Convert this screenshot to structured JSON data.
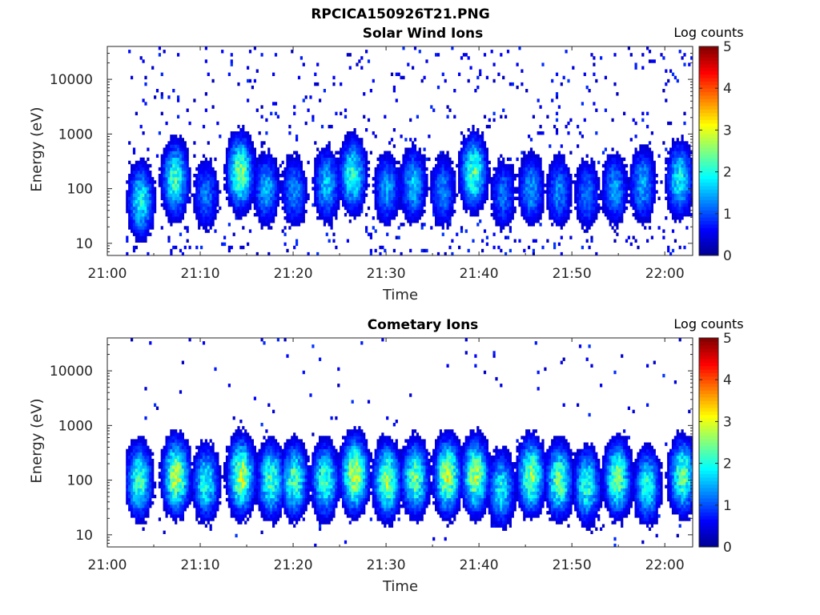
{
  "figure_title": "RPCICA150926T21.PNG",
  "colormap": [
    "#00008f",
    "#0000ff",
    "#0080ff",
    "#00ffff",
    "#80ff80",
    "#ffff00",
    "#ff8000",
    "#ff0000",
    "#800000"
  ],
  "chart_data": [
    {
      "type": "heatmap",
      "title": "Solar Wind Ions",
      "xlabel": "Time",
      "ylabel": "Energy (eV)",
      "x_ticks": [
        "21:00",
        "21:10",
        "21:20",
        "21:30",
        "21:40",
        "21:50",
        "22:00"
      ],
      "xlim": [
        "21:00",
        "22:03"
      ],
      "y_scale": "log",
      "y_ticks": [
        10,
        100,
        1000,
        10000
      ],
      "ylim": [
        6,
        40000
      ],
      "colorbar_label": "Log counts",
      "colorbar_ticks": [
        0,
        1,
        2,
        3,
        4,
        5
      ],
      "clim": [
        0,
        5
      ],
      "data_start": "21:02",
      "data_end": "22:03",
      "bursts": [
        {
          "time": "21:03.5",
          "peak_eV": 60,
          "max_log_counts": 1.9
        },
        {
          "time": "21:07.2",
          "peak_eV": 150,
          "max_log_counts": 2.2
        },
        {
          "time": "21:10.5",
          "peak_eV": 80,
          "max_log_counts": 1.2
        },
        {
          "time": "21:14.2",
          "peak_eV": 200,
          "max_log_counts": 2.5
        },
        {
          "time": "21:17",
          "peak_eV": 100,
          "max_log_counts": 1.5
        },
        {
          "time": "21:20",
          "peak_eV": 90,
          "max_log_counts": 1.3
        },
        {
          "time": "21:23.5",
          "peak_eV": 120,
          "max_log_counts": 1.6
        },
        {
          "time": "21:26.3",
          "peak_eV": 180,
          "max_log_counts": 2.1
        },
        {
          "time": "21:30",
          "peak_eV": 100,
          "max_log_counts": 1.4
        },
        {
          "time": "21:32.8",
          "peak_eV": 120,
          "max_log_counts": 1.6
        },
        {
          "time": "21:36",
          "peak_eV": 90,
          "max_log_counts": 1.3
        },
        {
          "time": "21:39.3",
          "peak_eV": 200,
          "max_log_counts": 2.3
        },
        {
          "time": "21:42.5",
          "peak_eV": 80,
          "max_log_counts": 1.2
        },
        {
          "time": "21:45.5",
          "peak_eV": 100,
          "max_log_counts": 1.4
        },
        {
          "time": "21:48.5",
          "peak_eV": 90,
          "max_log_counts": 1.3
        },
        {
          "time": "21:51.5",
          "peak_eV": 80,
          "max_log_counts": 1.2
        },
        {
          "time": "21:54.5",
          "peak_eV": 100,
          "max_log_counts": 1.4
        },
        {
          "time": "21:57.5",
          "peak_eV": 120,
          "max_log_counts": 1.5
        },
        {
          "time": "22:01.5",
          "peak_eV": 150,
          "max_log_counts": 1.9
        }
      ],
      "background_level": 0.4
    },
    {
      "type": "heatmap",
      "title": "Cometary Ions",
      "xlabel": "Time",
      "ylabel": "Energy (eV)",
      "x_ticks": [
        "21:00",
        "21:10",
        "21:20",
        "21:30",
        "21:40",
        "21:50",
        "22:00"
      ],
      "xlim": [
        "21:00",
        "22:03"
      ],
      "y_scale": "log",
      "y_ticks": [
        10,
        100,
        1000,
        10000
      ],
      "ylim": [
        6,
        40000
      ],
      "colorbar_label": "Log counts",
      "colorbar_ticks": [
        0,
        1,
        2,
        3,
        4,
        5
      ],
      "clim": [
        0,
        5
      ],
      "data_start": "21:02",
      "data_end": "22:03",
      "bursts": [
        {
          "time": "21:03.3",
          "peak_eV": 100,
          "max_log_counts": 2.2
        },
        {
          "time": "21:07.3",
          "peak_eV": 120,
          "max_log_counts": 2.8
        },
        {
          "time": "21:10.5",
          "peak_eV": 90,
          "max_log_counts": 2.0
        },
        {
          "time": "21:14.3",
          "peak_eV": 120,
          "max_log_counts": 2.8
        },
        {
          "time": "21:17.5",
          "peak_eV": 100,
          "max_log_counts": 2.3
        },
        {
          "time": "21:20",
          "peak_eV": 100,
          "max_log_counts": 2.3
        },
        {
          "time": "21:23.3",
          "peak_eV": 100,
          "max_log_counts": 2.2
        },
        {
          "time": "21:26.5",
          "peak_eV": 130,
          "max_log_counts": 2.9
        },
        {
          "time": "21:30",
          "peak_eV": 100,
          "max_log_counts": 2.6
        },
        {
          "time": "21:33",
          "peak_eV": 110,
          "max_log_counts": 2.4
        },
        {
          "time": "21:36.5",
          "peak_eV": 120,
          "max_log_counts": 2.8
        },
        {
          "time": "21:39.5",
          "peak_eV": 120,
          "max_log_counts": 2.7
        },
        {
          "time": "21:42.3",
          "peak_eV": 70,
          "max_log_counts": 1.9
        },
        {
          "time": "21:45.5",
          "peak_eV": 120,
          "max_log_counts": 2.6
        },
        {
          "time": "21:48.5",
          "peak_eV": 100,
          "max_log_counts": 2.4
        },
        {
          "time": "21:51.5",
          "peak_eV": 80,
          "max_log_counts": 2.1
        },
        {
          "time": "21:54.8",
          "peak_eV": 110,
          "max_log_counts": 2.5
        },
        {
          "time": "21:58",
          "peak_eV": 80,
          "max_log_counts": 2.0
        },
        {
          "time": "22:01.8",
          "peak_eV": 120,
          "max_log_counts": 2.4
        }
      ],
      "background_level": 0.1
    }
  ]
}
